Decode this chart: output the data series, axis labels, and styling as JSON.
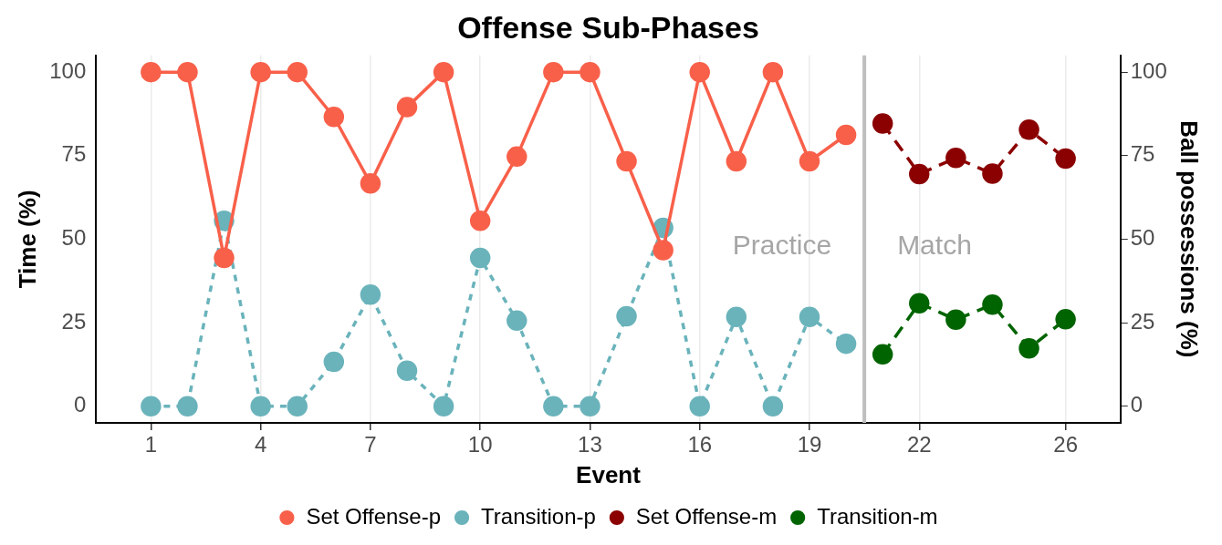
{
  "chart_data": {
    "type": "line",
    "title": "Offense Sub-Phases",
    "xlabel": "Event",
    "ylabel": "Time (%)",
    "y2label": "Ball possessions (%)",
    "xlim": [
      -0.5,
      27.5
    ],
    "xticks": [
      1,
      4,
      7,
      10,
      13,
      16,
      19,
      22,
      26
    ],
    "ylim": [
      -5,
      105
    ],
    "yticks": [
      0,
      25,
      50,
      75,
      100
    ],
    "y2lim": [
      -5,
      105
    ],
    "y2ticks": [
      0,
      25,
      50,
      75,
      100
    ],
    "grid": "x",
    "legend": "bottom",
    "marker": "circle",
    "series": [
      {
        "name": "Set Offense-p",
        "color": "#f8604a",
        "line_style": "solid",
        "x": [
          1,
          2,
          3,
          4,
          5,
          6,
          7,
          8,
          9,
          10,
          11,
          12,
          13,
          14,
          15,
          16,
          17,
          18,
          19,
          20
        ],
        "values": [
          100,
          100,
          44.4,
          100,
          100,
          86.6,
          66.7,
          89.5,
          100,
          55.5,
          74.7,
          100,
          100,
          73.3,
          46.7,
          100,
          73.3,
          100,
          73.3,
          81.2
        ]
      },
      {
        "name": "Transition-p",
        "color": "#6ab3bb",
        "line_style": "dotted",
        "x": [
          1,
          2,
          3,
          4,
          5,
          6,
          7,
          8,
          9,
          10,
          11,
          12,
          13,
          14,
          15,
          16,
          17,
          18,
          19,
          20
        ],
        "values": [
          0,
          0,
          55.5,
          0,
          0,
          13.3,
          33.4,
          10.6,
          0,
          44.4,
          25.6,
          0,
          0,
          26.9,
          53.4,
          0,
          26.7,
          0,
          26.7,
          18.7
        ]
      },
      {
        "name": "Set Offense-m",
        "color": "#8b0000",
        "line_style": "dashed",
        "x": [
          21,
          22,
          23,
          24,
          25,
          26
        ],
        "values": [
          84.6,
          69.5,
          74.3,
          69.6,
          82.8,
          74.1
        ]
      },
      {
        "name": "Transition-m",
        "color": "#006400",
        "line_style": "dashed",
        "x": [
          21,
          22,
          23,
          24,
          25,
          26
        ],
        "values": [
          15.5,
          30.8,
          25.9,
          30.4,
          17.3,
          26.0
        ]
      }
    ],
    "ref_lines": [
      {
        "axis": "x",
        "value": 20.5,
        "color": "#bebebe"
      }
    ],
    "annotations": [
      "Practice",
      "Match"
    ]
  }
}
